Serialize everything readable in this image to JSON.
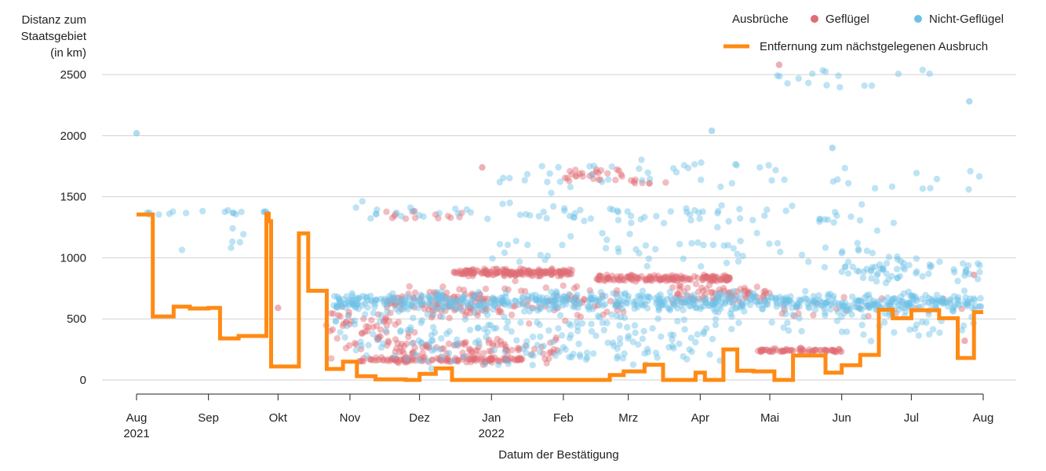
{
  "chart_data": {
    "type": "scatter",
    "title": "",
    "ylabel": [
      "Distanz zum",
      "Staatsgebiet",
      "(in km)"
    ],
    "xlabel": "Datum der Bestätigung",
    "xlim": [
      "2021-08-01",
      "2022-08-01"
    ],
    "ylim": [
      0,
      2500
    ],
    "yticks": [
      0,
      500,
      1000,
      1500,
      2000,
      2500
    ],
    "xticks": [
      {
        "date": "2021-08-01",
        "label": "Aug",
        "sublabel": "2021"
      },
      {
        "date": "2021-09-01",
        "label": "Sep",
        "sublabel": ""
      },
      {
        "date": "2021-10-01",
        "label": "Okt",
        "sublabel": ""
      },
      {
        "date": "2021-11-01",
        "label": "Nov",
        "sublabel": ""
      },
      {
        "date": "2021-12-01",
        "label": "Dez",
        "sublabel": ""
      },
      {
        "date": "2022-01-01",
        "label": "Jan",
        "sublabel": "2022"
      },
      {
        "date": "2022-02-01",
        "label": "Feb",
        "sublabel": ""
      },
      {
        "date": "2022-03-01",
        "label": "Mrz",
        "sublabel": ""
      },
      {
        "date": "2022-04-01",
        "label": "Apr",
        "sublabel": ""
      },
      {
        "date": "2022-05-01",
        "label": "Mai",
        "sublabel": ""
      },
      {
        "date": "2022-06-01",
        "label": "Jun",
        "sublabel": ""
      },
      {
        "date": "2022-07-01",
        "label": "Jul",
        "sublabel": ""
      },
      {
        "date": "2022-08-01",
        "label": "Aug",
        "sublabel": ""
      }
    ],
    "grid": true,
    "legend": {
      "placement": "top-right",
      "title": "Ausbrüche",
      "entries": [
        {
          "label": "Geflügel",
          "color": "#e06c75"
        },
        {
          "label": "Nicht-Geflügel",
          "color": "#6ec0e6"
        },
        {
          "label": "Entfernung zum nächstgelegenen Ausbruch",
          "color": "#ff8a14"
        }
      ]
    },
    "series": [
      {
        "name": "Geflügel",
        "kind": "points",
        "color": "#e06c75",
        "clusters": [
          {
            "x0": "2021-10-20",
            "x1": "2021-11-30",
            "y": 400,
            "spread": 300,
            "n": 60
          },
          {
            "x0": "2021-11-05",
            "x1": "2022-01-15",
            "y": 165,
            "spread": 30,
            "n": 120
          },
          {
            "x0": "2021-11-20",
            "x1": "2022-01-31",
            "y": 250,
            "spread": 150,
            "n": 90
          },
          {
            "x0": "2021-11-15",
            "x1": "2021-12-31",
            "y": 650,
            "spread": 150,
            "n": 70
          },
          {
            "x0": "2021-12-15",
            "x1": "2022-02-05",
            "y": 880,
            "spread": 40,
            "n": 170
          },
          {
            "x0": "2021-12-01",
            "x1": "2022-02-28",
            "y": 620,
            "spread": 220,
            "n": 90
          },
          {
            "x0": "2022-02-15",
            "x1": "2022-04-15",
            "y": 830,
            "spread": 40,
            "n": 160
          },
          {
            "x0": "2022-02-01",
            "x1": "2022-03-01",
            "y": 1680,
            "spread": 80,
            "n": 26
          },
          {
            "x0": "2022-03-01",
            "x1": "2022-03-20",
            "y": 1620,
            "spread": 40,
            "n": 8
          },
          {
            "x0": "2022-03-20",
            "x1": "2022-05-01",
            "y": 700,
            "spread": 120,
            "n": 70
          },
          {
            "x0": "2022-04-25",
            "x1": "2022-06-01",
            "y": 240,
            "spread": 25,
            "n": 70
          },
          {
            "x0": "2021-11-15",
            "x1": "2021-12-20",
            "y": 1350,
            "spread": 60,
            "n": 14
          },
          {
            "x0": "2022-05-01",
            "x1": "2022-07-25",
            "y": 600,
            "spread": 150,
            "n": 20
          }
        ],
        "points": [
          [
            "2022-05-05",
            2580
          ],
          [
            "2021-12-28",
            1740
          ],
          [
            "2022-07-24",
            320
          ],
          [
            "2022-07-28",
            860
          ],
          [
            "2021-10-01",
            590
          ]
        ]
      },
      {
        "name": "Nicht-Geflügel",
        "kind": "points",
        "color": "#6ec0e6",
        "clusters": [
          {
            "x0": "2021-08-05",
            "x1": "2021-09-30",
            "y": 1370,
            "spread": 25,
            "n": 18
          },
          {
            "x0": "2021-08-15",
            "x1": "2021-09-30",
            "y": 1150,
            "spread": 120,
            "n": 6
          },
          {
            "x0": "2021-10-25",
            "x1": "2022-07-31",
            "y": 640,
            "spread": 110,
            "n": 650
          },
          {
            "x0": "2021-10-25",
            "x1": "2022-07-31",
            "y": 500,
            "spread": 250,
            "n": 170
          },
          {
            "x0": "2021-11-01",
            "x1": "2022-06-10",
            "y": 1350,
            "spread": 140,
            "n": 80
          },
          {
            "x0": "2021-11-01",
            "x1": "2022-04-10",
            "y": 250,
            "spread": 200,
            "n": 110
          },
          {
            "x0": "2022-01-01",
            "x1": "2022-06-30",
            "y": 1050,
            "spread": 300,
            "n": 60
          },
          {
            "x0": "2022-01-01",
            "x1": "2022-07-31",
            "y": 1650,
            "spread": 150,
            "n": 40
          },
          {
            "x0": "2022-05-01",
            "x1": "2022-07-10",
            "y": 2480,
            "spread": 120,
            "n": 16
          },
          {
            "x0": "2022-06-01",
            "x1": "2022-07-31",
            "y": 900,
            "spread": 150,
            "n": 60
          },
          {
            "x0": "2022-02-10",
            "x1": "2022-05-20",
            "y": 1750,
            "spread": 100,
            "n": 12
          }
        ],
        "points": [
          [
            "2021-08-01",
            2020
          ],
          [
            "2022-04-06",
            2040
          ],
          [
            "2022-05-28",
            1900
          ],
          [
            "2022-07-26",
            2280
          ],
          [
            "2022-07-31",
            600
          ]
        ]
      },
      {
        "name": "Entfernung zum nächstgelegenen Ausbruch",
        "kind": "step",
        "color": "#ff8a14",
        "points": [
          [
            "2021-08-01",
            1355
          ],
          [
            "2021-08-08",
            520
          ],
          [
            "2021-08-17",
            600
          ],
          [
            "2021-08-24",
            585
          ],
          [
            "2021-09-01",
            590
          ],
          [
            "2021-09-06",
            340
          ],
          [
            "2021-09-14",
            360
          ],
          [
            "2021-09-26",
            1360
          ],
          [
            "2021-09-27",
            1300
          ],
          [
            "2021-09-28",
            110
          ],
          [
            "2021-10-10",
            1200
          ],
          [
            "2021-10-14",
            730
          ],
          [
            "2021-10-22",
            90
          ],
          [
            "2021-10-29",
            150
          ],
          [
            "2021-11-04",
            30
          ],
          [
            "2021-11-12",
            5
          ],
          [
            "2021-11-25",
            0
          ],
          [
            "2021-12-01",
            50
          ],
          [
            "2021-12-08",
            95
          ],
          [
            "2021-12-15",
            0
          ],
          [
            "2022-02-21",
            40
          ],
          [
            "2022-02-27",
            70
          ],
          [
            "2022-03-08",
            125
          ],
          [
            "2022-03-16",
            0
          ],
          [
            "2022-03-30",
            60
          ],
          [
            "2022-04-03",
            0
          ],
          [
            "2022-04-11",
            250
          ],
          [
            "2022-04-17",
            75
          ],
          [
            "2022-04-24",
            70
          ],
          [
            "2022-05-03",
            0
          ],
          [
            "2022-05-11",
            200
          ],
          [
            "2022-05-25",
            60
          ],
          [
            "2022-06-01",
            120
          ],
          [
            "2022-06-09",
            205
          ],
          [
            "2022-06-17",
            575
          ],
          [
            "2022-06-23",
            505
          ],
          [
            "2022-07-01",
            570
          ],
          [
            "2022-07-13",
            505
          ],
          [
            "2022-07-21",
            180
          ],
          [
            "2022-07-28",
            555
          ],
          [
            "2022-08-01",
            555
          ]
        ]
      }
    ]
  }
}
